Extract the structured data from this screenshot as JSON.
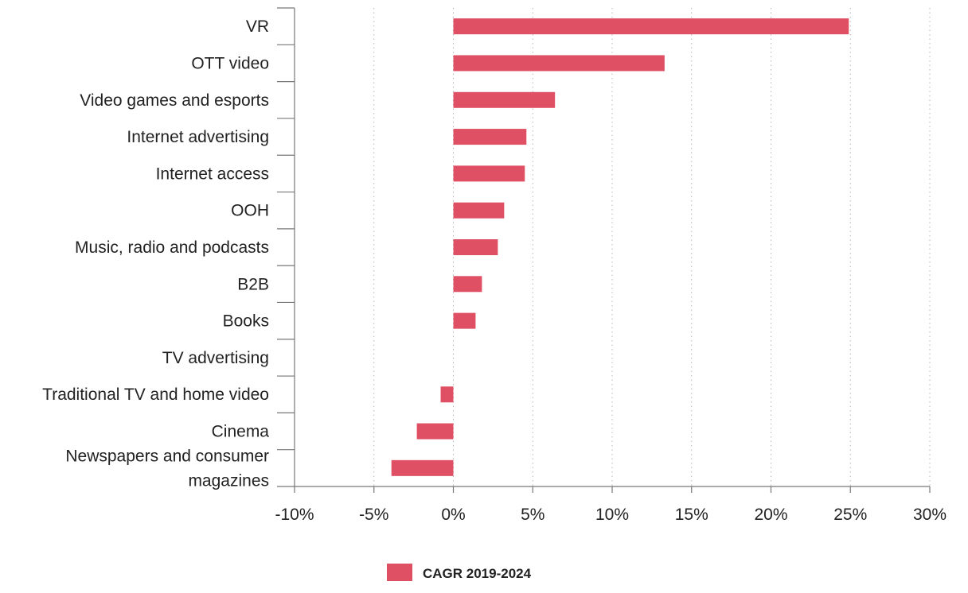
{
  "chart_data": {
    "type": "bar",
    "orientation": "horizontal",
    "title": "",
    "xlabel": "",
    "ylabel": "",
    "categories": [
      [
        "VR"
      ],
      [
        "OTT video"
      ],
      [
        "Video games and esports"
      ],
      [
        "Internet advertising"
      ],
      [
        "Internet access"
      ],
      [
        "OOH"
      ],
      [
        "Music, radio and podcasts"
      ],
      [
        "B2B"
      ],
      [
        "Books"
      ],
      [
        "TV advertising"
      ],
      [
        "Traditional TV and home video"
      ],
      [
        "Cinema"
      ],
      [
        "Newspapers and consumer",
        "magazines"
      ]
    ],
    "series": [
      {
        "name": "CAGR 2019-2024",
        "color": "#e05064",
        "values": [
          24.9,
          13.3,
          6.4,
          4.6,
          4.5,
          3.2,
          2.8,
          1.8,
          1.4,
          0.0,
          -0.8,
          -2.3,
          -3.9
        ]
      }
    ],
    "xlim": [
      -10,
      30
    ],
    "xticks": [
      -10,
      -5,
      0,
      5,
      10,
      15,
      20,
      25,
      30
    ],
    "xtick_labels": [
      "-10%",
      "-5%",
      "0%",
      "5%",
      "10%",
      "15%",
      "20%",
      "25%",
      "30%"
    ],
    "grid": "vertical dotted",
    "legend": "bottom-center"
  }
}
